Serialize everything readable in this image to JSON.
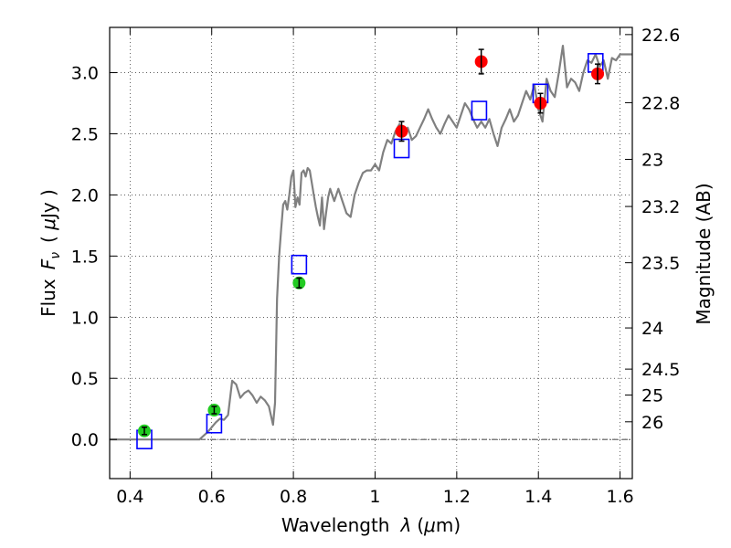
{
  "chart_data": {
    "type": "scatter",
    "xlabel": "Wavelength  λ (μm)",
    "ylabel": "Flux  F_ν  ( μJy )",
    "ylabel_parts": [
      "Flux",
      "F",
      "ν",
      "( ",
      "μ",
      "Jy )"
    ],
    "xlabel_parts": [
      "Wavelength",
      "λ",
      "(",
      "μ",
      "m)"
    ],
    "y2label": "Magnitude (AB)",
    "xlim": [
      0.35,
      1.63
    ],
    "ylim": [
      -0.32,
      3.37
    ],
    "grid": true,
    "x_ticks": [
      0.4,
      0.6,
      0.8,
      1.0,
      1.2,
      1.4,
      1.6
    ],
    "x_tick_labels": [
      "0.4",
      "0.6",
      "0.8",
      "1",
      "1.2",
      "1.4",
      "1.6"
    ],
    "y_ticks": [
      0.0,
      0.5,
      1.0,
      1.5,
      2.0,
      2.5,
      3.0
    ],
    "y_tick_labels": [
      "0.0",
      "0.5",
      "1.0",
      "1.5",
      "2.0",
      "2.5",
      "3.0"
    ],
    "mag_ticks": [
      22.6,
      22.8,
      23,
      23.2,
      23.5,
      24,
      24.5,
      25,
      26
    ],
    "mag_tick_labels": [
      "22.6",
      "22.8",
      "23",
      "23.2",
      "23.5",
      "24",
      "24.5",
      "25",
      "26"
    ],
    "colors": {
      "model": "#808080",
      "model_points": "#0000ff",
      "optical": "#22cc22",
      "nir": "#ff0000",
      "errorbar": "#000000"
    },
    "series": [
      {
        "kind": "line",
        "x": [
          0.35,
          0.4,
          0.45,
          0.5,
          0.55,
          0.57,
          0.58,
          0.59,
          0.6,
          0.61,
          0.62,
          0.63,
          0.64,
          0.65,
          0.66,
          0.67,
          0.68,
          0.69,
          0.7,
          0.71,
          0.72,
          0.73,
          0.74,
          0.75,
          0.755,
          0.76,
          0.765,
          0.77,
          0.775,
          0.78,
          0.785,
          0.79,
          0.795,
          0.8,
          0.805,
          0.81,
          0.815,
          0.82,
          0.825,
          0.83,
          0.835,
          0.84,
          0.845,
          0.85,
          0.855,
          0.86,
          0.865,
          0.87,
          0.875,
          0.88,
          0.885,
          0.89,
          0.895,
          0.9,
          0.91,
          0.92,
          0.93,
          0.94,
          0.95,
          0.96,
          0.97,
          0.98,
          0.99,
          1.0,
          1.01,
          1.02,
          1.03,
          1.04,
          1.05,
          1.06,
          1.07,
          1.08,
          1.09,
          1.1,
          1.11,
          1.12,
          1.13,
          1.14,
          1.15,
          1.16,
          1.17,
          1.18,
          1.19,
          1.2,
          1.21,
          1.22,
          1.23,
          1.24,
          1.25,
          1.26,
          1.27,
          1.28,
          1.29,
          1.3,
          1.31,
          1.32,
          1.33,
          1.34,
          1.35,
          1.36,
          1.37,
          1.38,
          1.39,
          1.4,
          1.41,
          1.42,
          1.43,
          1.44,
          1.45,
          1.46,
          1.47,
          1.48,
          1.49,
          1.5,
          1.51,
          1.52,
          1.53,
          1.54,
          1.55,
          1.56,
          1.57,
          1.58,
          1.59,
          1.6,
          1.61,
          1.62,
          1.63
        ],
        "y": [
          0.0,
          0.0,
          0.0,
          0.0,
          0.0,
          0.0,
          0.03,
          0.06,
          0.1,
          0.14,
          0.17,
          0.16,
          0.2,
          0.48,
          0.45,
          0.34,
          0.38,
          0.4,
          0.36,
          0.3,
          0.35,
          0.32,
          0.27,
          0.12,
          0.3,
          1.15,
          1.5,
          1.72,
          1.92,
          1.95,
          1.88,
          2.0,
          2.15,
          2.2,
          1.9,
          1.98,
          1.92,
          2.18,
          2.2,
          2.15,
          2.22,
          2.2,
          2.1,
          2.0,
          1.9,
          1.82,
          1.75,
          1.98,
          1.72,
          1.85,
          1.98,
          2.05,
          2.0,
          1.95,
          2.05,
          1.95,
          1.85,
          1.82,
          2.0,
          2.1,
          2.18,
          2.2,
          2.2,
          2.25,
          2.2,
          2.35,
          2.45,
          2.42,
          2.52,
          2.58,
          2.5,
          2.55,
          2.45,
          2.48,
          2.55,
          2.62,
          2.7,
          2.62,
          2.55,
          2.5,
          2.58,
          2.65,
          2.6,
          2.55,
          2.65,
          2.75,
          2.7,
          2.62,
          2.55,
          2.6,
          2.55,
          2.62,
          2.5,
          2.4,
          2.55,
          2.62,
          2.7,
          2.6,
          2.65,
          2.75,
          2.85,
          2.78,
          2.9,
          2.7,
          2.6,
          2.95,
          2.85,
          2.8,
          3.0,
          3.22,
          2.88,
          2.95,
          2.92,
          2.85,
          3.0,
          3.1,
          3.08,
          3.15,
          3.05,
          3.1,
          2.95,
          3.12,
          3.1,
          3.15,
          3.15,
          3.15,
          3.15
        ]
      },
      {
        "kind": "model_points",
        "x": [
          0.435,
          0.606,
          0.814,
          1.065,
          1.255,
          1.405,
          1.54
        ],
        "y": [
          0.0,
          0.13,
          1.43,
          2.38,
          2.69,
          2.83,
          3.08
        ]
      },
      {
        "kind": "optical",
        "x": [
          0.435,
          0.606,
          0.814
        ],
        "y": [
          0.07,
          0.24,
          1.28
        ],
        "yerr": [
          0.03,
          0.03,
          0.04
        ]
      },
      {
        "kind": "nir",
        "x": [
          1.065,
          1.26,
          1.405,
          1.545
        ],
        "y": [
          2.52,
          3.09,
          2.75,
          2.99
        ],
        "yerr": [
          0.08,
          0.1,
          0.08,
          0.08
        ]
      }
    ]
  }
}
